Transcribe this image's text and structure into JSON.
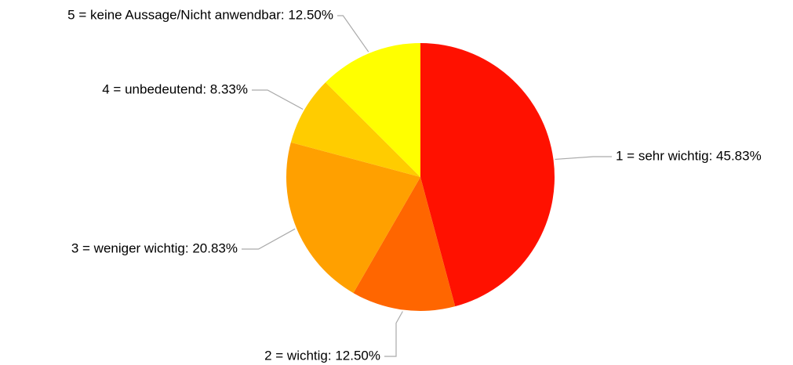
{
  "chart_data": {
    "type": "pie",
    "values": [
      45.83,
      12.5,
      20.83,
      8.33,
      12.5
    ],
    "value_labels": [
      "1 = sehr wichtig: 45.83%",
      "2 = wichtig: 12.50%",
      "3 = weniger wichtig: 20.83%",
      "4 = unbedeutend: 8.33%",
      "5 = keine Aussage/Nicht anwendbar: 12.50%"
    ],
    "colors": [
      "#ff1100",
      "#ff6600",
      "#ffa000",
      "#ffcc00",
      "#ffff00"
    ]
  }
}
